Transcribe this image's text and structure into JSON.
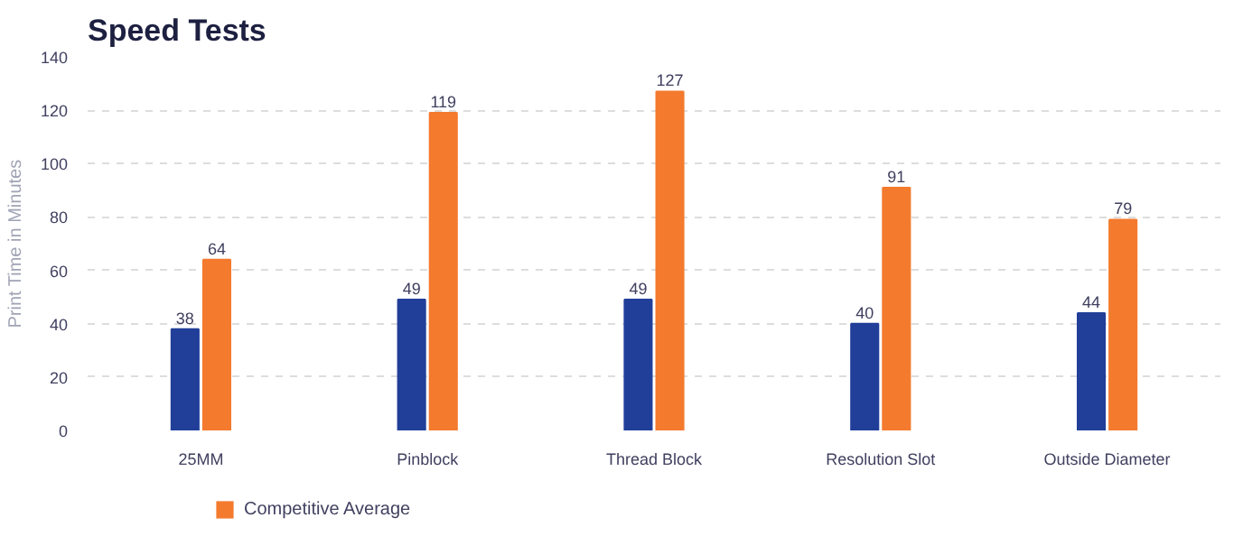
{
  "chart_data": {
    "type": "bar",
    "title": "Speed Tests",
    "ylabel": "Print Time in Minutes",
    "categories": [
      "25MM",
      "Pinblock",
      "Thread Block",
      "Resolution Slot",
      "Outside Diameter"
    ],
    "series": [
      {
        "color": "#213f99",
        "values": [
          38,
          49,
          49,
          40,
          44
        ]
      },
      {
        "name": "Competitive Average",
        "color": "#f47a2e",
        "values": [
          64,
          119,
          127,
          91,
          79
        ]
      }
    ],
    "ylim": [
      0,
      140
    ],
    "yticks": [
      0,
      20,
      40,
      60,
      80,
      100,
      120,
      140
    ],
    "grid": "y",
    "legend": "bottom",
    "data_labels": true
  }
}
